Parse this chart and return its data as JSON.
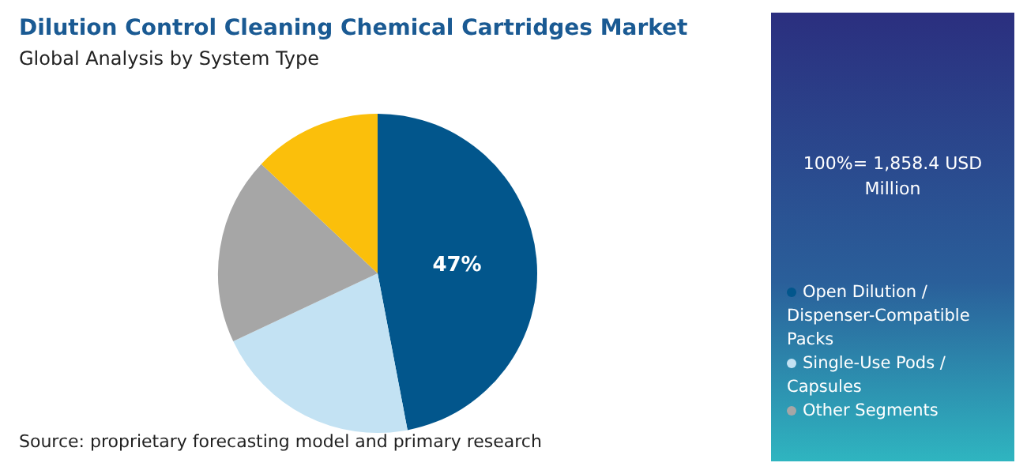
{
  "chart_data": {
    "type": "pie",
    "title": "Dilution Control Cleaning Chemical Cartridges Market",
    "subtitle": "Global Analysis by System Type",
    "categories": [
      "Open Dilution / Dispenser-Compatible Packs",
      "Single-Use Pods / Capsules",
      "Other Segments",
      null
    ],
    "values": [
      47,
      21,
      19,
      13
    ],
    "colors": [
      "#02568c",
      "#c3e2f3",
      "#a6a6a6",
      "#fbbf0b"
    ],
    "legend": "right",
    "value_labels": [
      "47%",
      null,
      null,
      null
    ],
    "annotations": [
      "100%= 1,858.4 USD Million",
      "Source: proprietary forecasting model and primary research"
    ]
  }
}
